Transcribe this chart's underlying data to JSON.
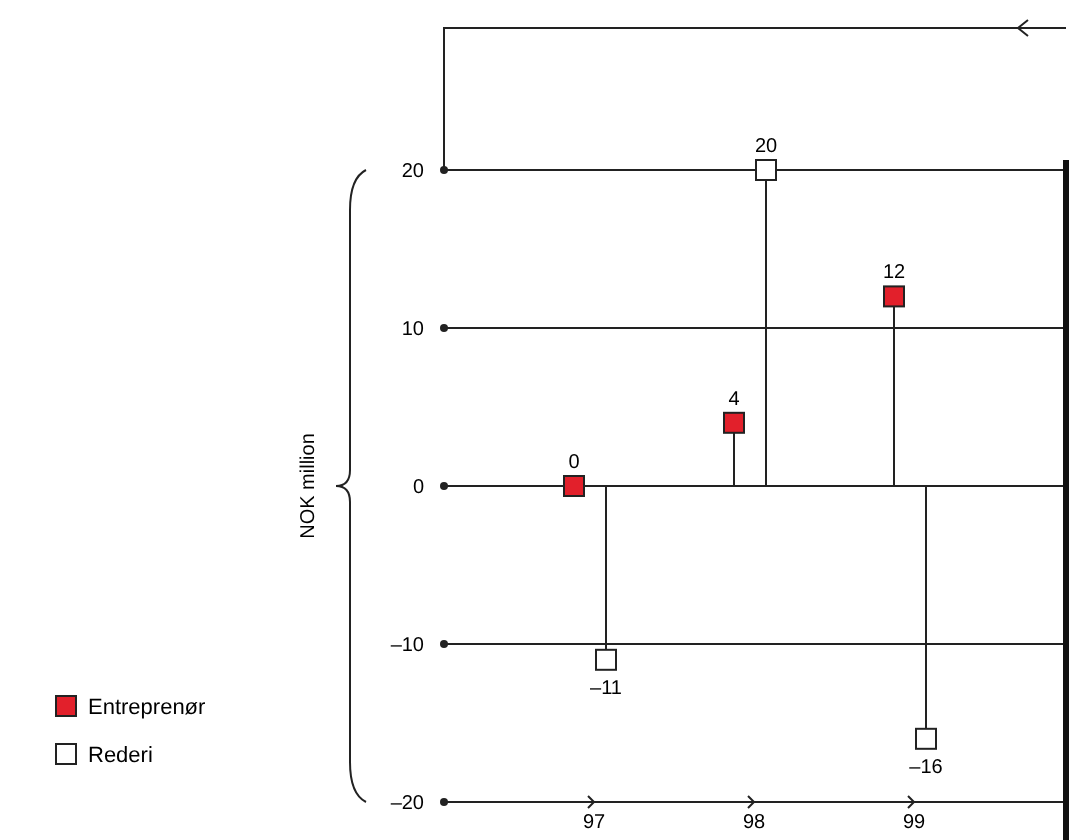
{
  "chart_data": {
    "type": "lollipop",
    "ylabel": "NOK million",
    "categories": [
      "97",
      "98",
      "99"
    ],
    "ylim": [
      -20,
      20
    ],
    "yticks": [
      {
        "value": -20,
        "label": "–20"
      },
      {
        "value": -10,
        "label": "–10"
      },
      0,
      10,
      20
    ],
    "grid": "y",
    "marker": "square",
    "legend": "bottom left",
    "series": [
      {
        "name": "Entreprenør",
        "color": "#e2202b",
        "values": [
          0,
          4,
          12
        ],
        "value_labels": [
          "0",
          "4",
          "12"
        ]
      },
      {
        "name": "Rederi",
        "color": "#ffffff",
        "values": [
          -11,
          20,
          -16
        ],
        "value_labels": [
          "–11",
          "20",
          "–16"
        ]
      }
    ]
  }
}
